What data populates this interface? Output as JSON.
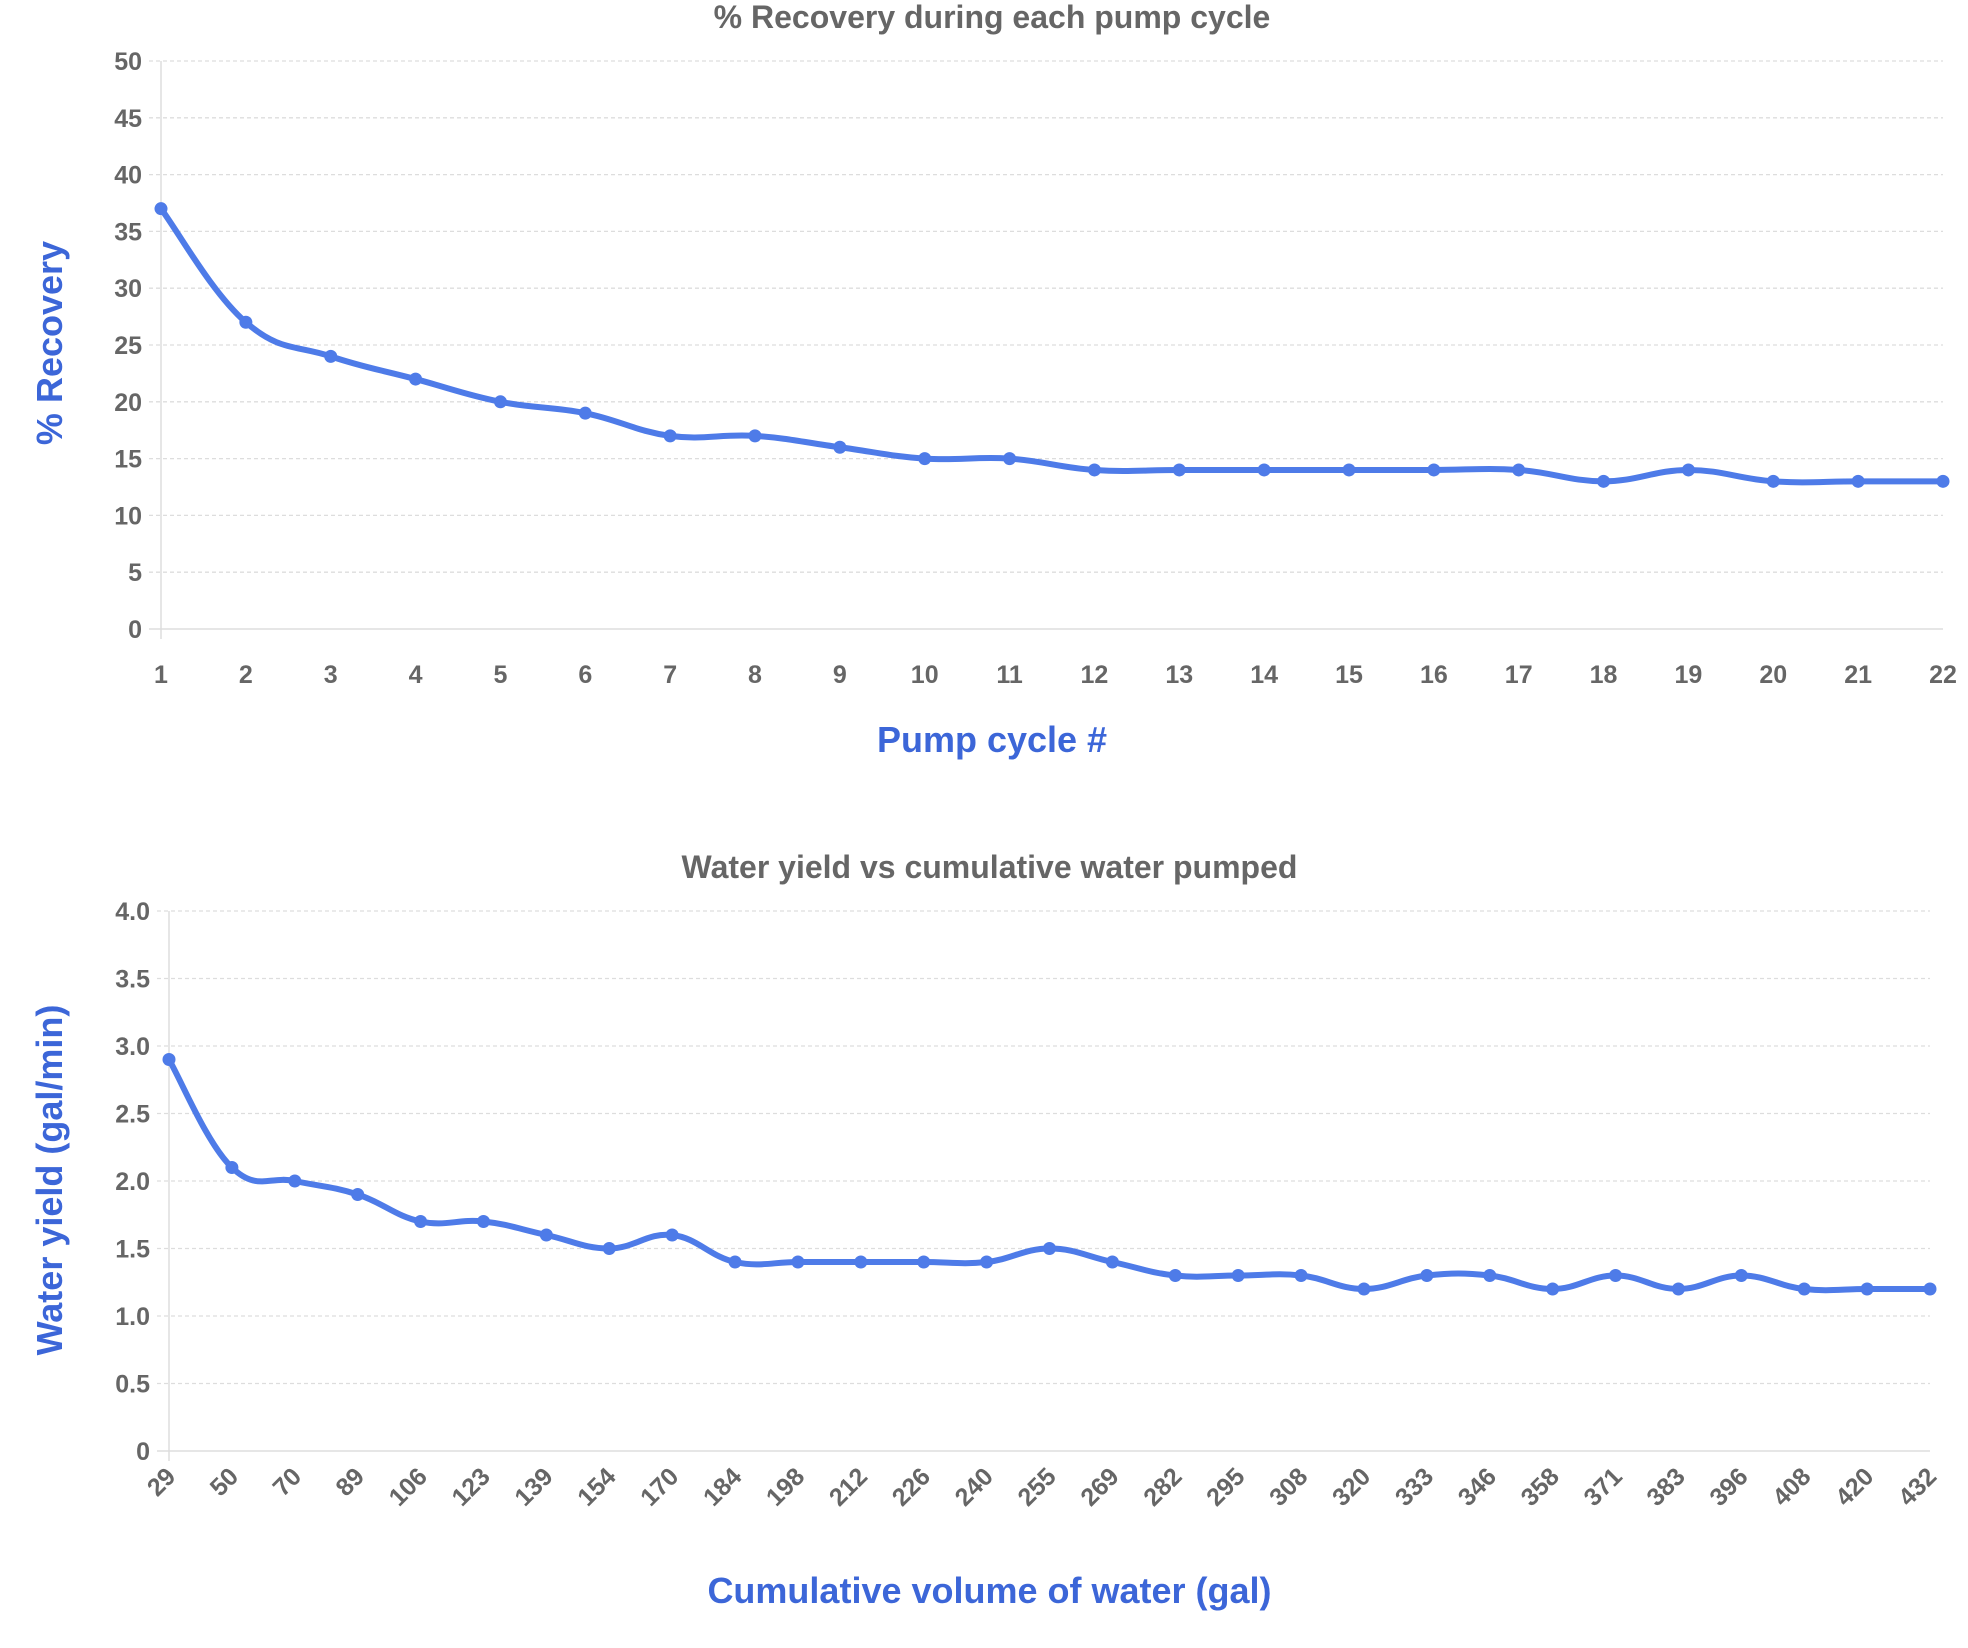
{
  "colors": {
    "series": "#4e7be8",
    "axis_title": "#3c66d8",
    "text": "#666666",
    "grid": "#dddddd"
  },
  "chart_data": [
    {
      "type": "line",
      "title": "% Recovery during each pump cycle",
      "xlabel": "Pump cycle #",
      "ylabel": "% Recovery",
      "categories": [
        "1",
        "2",
        "3",
        "4",
        "5",
        "6",
        "7",
        "8",
        "9",
        "10",
        "11",
        "12",
        "13",
        "14",
        "15",
        "16",
        "17",
        "18",
        "19",
        "20",
        "21",
        "22"
      ],
      "values": [
        37,
        27,
        24,
        22,
        20,
        19,
        17,
        17,
        16,
        15,
        15,
        14,
        14,
        14,
        14,
        14,
        14,
        13,
        14,
        13,
        13,
        13
      ],
      "ylim": [
        0,
        50
      ],
      "yticks": [
        "0",
        "5",
        "10",
        "15",
        "20",
        "25",
        "30",
        "35",
        "40",
        "45",
        "50"
      ],
      "grid": true,
      "legend": "none"
    },
    {
      "type": "line",
      "title": "Water yield vs cumulative water pumped",
      "xlabel": "Cumulative volume of water (gal)",
      "ylabel": "Water yield (gal/min)",
      "categories": [
        "29",
        "50",
        "70",
        "89",
        "106",
        "123",
        "139",
        "154",
        "170",
        "184",
        "198",
        "212",
        "226",
        "240",
        "255",
        "269",
        "282",
        "295",
        "308",
        "320",
        "333",
        "346",
        "358",
        "371",
        "383",
        "396",
        "408",
        "420",
        "432"
      ],
      "values": [
        2.9,
        2.1,
        2.0,
        1.9,
        1.7,
        1.7,
        1.6,
        1.5,
        1.6,
        1.4,
        1.4,
        1.4,
        1.4,
        1.4,
        1.5,
        1.4,
        1.3,
        1.3,
        1.3,
        1.2,
        1.3,
        1.3,
        1.2,
        1.3,
        1.2,
        1.3,
        1.2,
        1.2,
        1.2
      ],
      "ylim": [
        0,
        4
      ],
      "yticks": [
        "0",
        "0.5",
        "1.0",
        "1.5",
        "2.0",
        "2.5",
        "3.0",
        "3.5",
        "4.0"
      ],
      "grid": true,
      "legend": "none"
    }
  ]
}
